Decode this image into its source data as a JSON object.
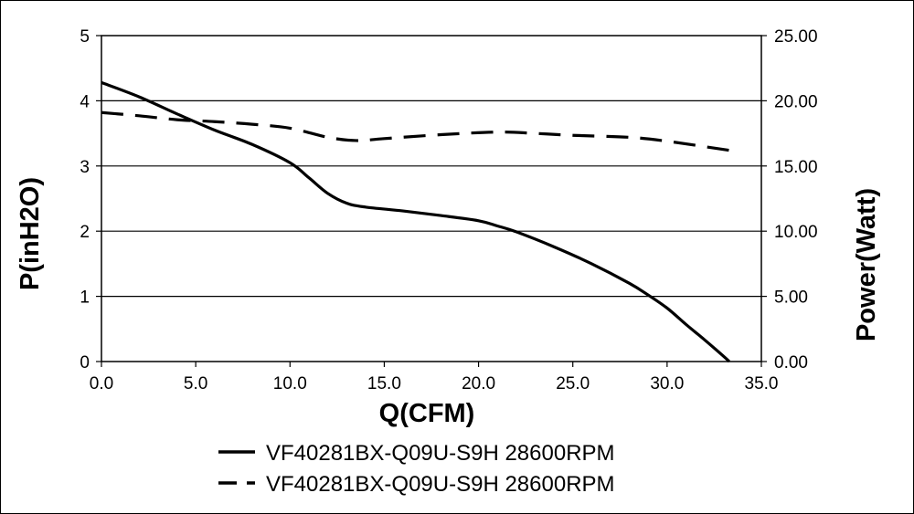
{
  "chart_data": {
    "type": "line",
    "title": "",
    "xlabel": "Q(CFM)",
    "ylabel": "P(inH2O)",
    "ylabel_right": "Power(Watt)",
    "xlim": [
      0,
      35
    ],
    "ylim": [
      0,
      5
    ],
    "ylim_right": [
      0,
      25
    ],
    "x_ticks": [
      "0.0",
      "5.0",
      "10.0",
      "15.0",
      "20.0",
      "25.0",
      "30.0",
      "35.0"
    ],
    "y_ticks": [
      "0",
      "1",
      "2",
      "3",
      "4",
      "5"
    ],
    "y_ticks_right": [
      "0.00",
      "5.00",
      "10.00",
      "15.00",
      "20.00",
      "25.00"
    ],
    "grid": "horizontal",
    "legend_position": "bottom",
    "series": [
      {
        "name": "VF40281BX-Q09U-S9H 28600RPM",
        "axis": "left",
        "style": "solid",
        "color": "#000000",
        "x": [
          0,
          2,
          4,
          6,
          8,
          10,
          11,
          12,
          13,
          14,
          16,
          18,
          20,
          21,
          22,
          24,
          26,
          28,
          29,
          30,
          31,
          32,
          33,
          33.3
        ],
        "y": [
          4.28,
          4.06,
          3.8,
          3.55,
          3.33,
          3.05,
          2.82,
          2.58,
          2.43,
          2.37,
          2.31,
          2.24,
          2.16,
          2.08,
          1.99,
          1.76,
          1.5,
          1.2,
          1.02,
          0.82,
          0.57,
          0.33,
          0.08,
          0
        ]
      },
      {
        "name": "VF40281BX-Q09U-S9H 28600RPM",
        "axis": "right",
        "style": "dashed",
        "color": "#000000",
        "x": [
          0,
          2,
          4,
          6,
          8,
          10,
          12,
          13.5,
          15,
          18,
          21,
          23,
          25,
          28,
          30,
          33.3
        ],
        "y": [
          19.1,
          18.85,
          18.55,
          18.4,
          18.2,
          17.9,
          17.2,
          16.95,
          17.1,
          17.4,
          17.6,
          17.5,
          17.35,
          17.2,
          16.9,
          16.2
        ]
      }
    ]
  }
}
